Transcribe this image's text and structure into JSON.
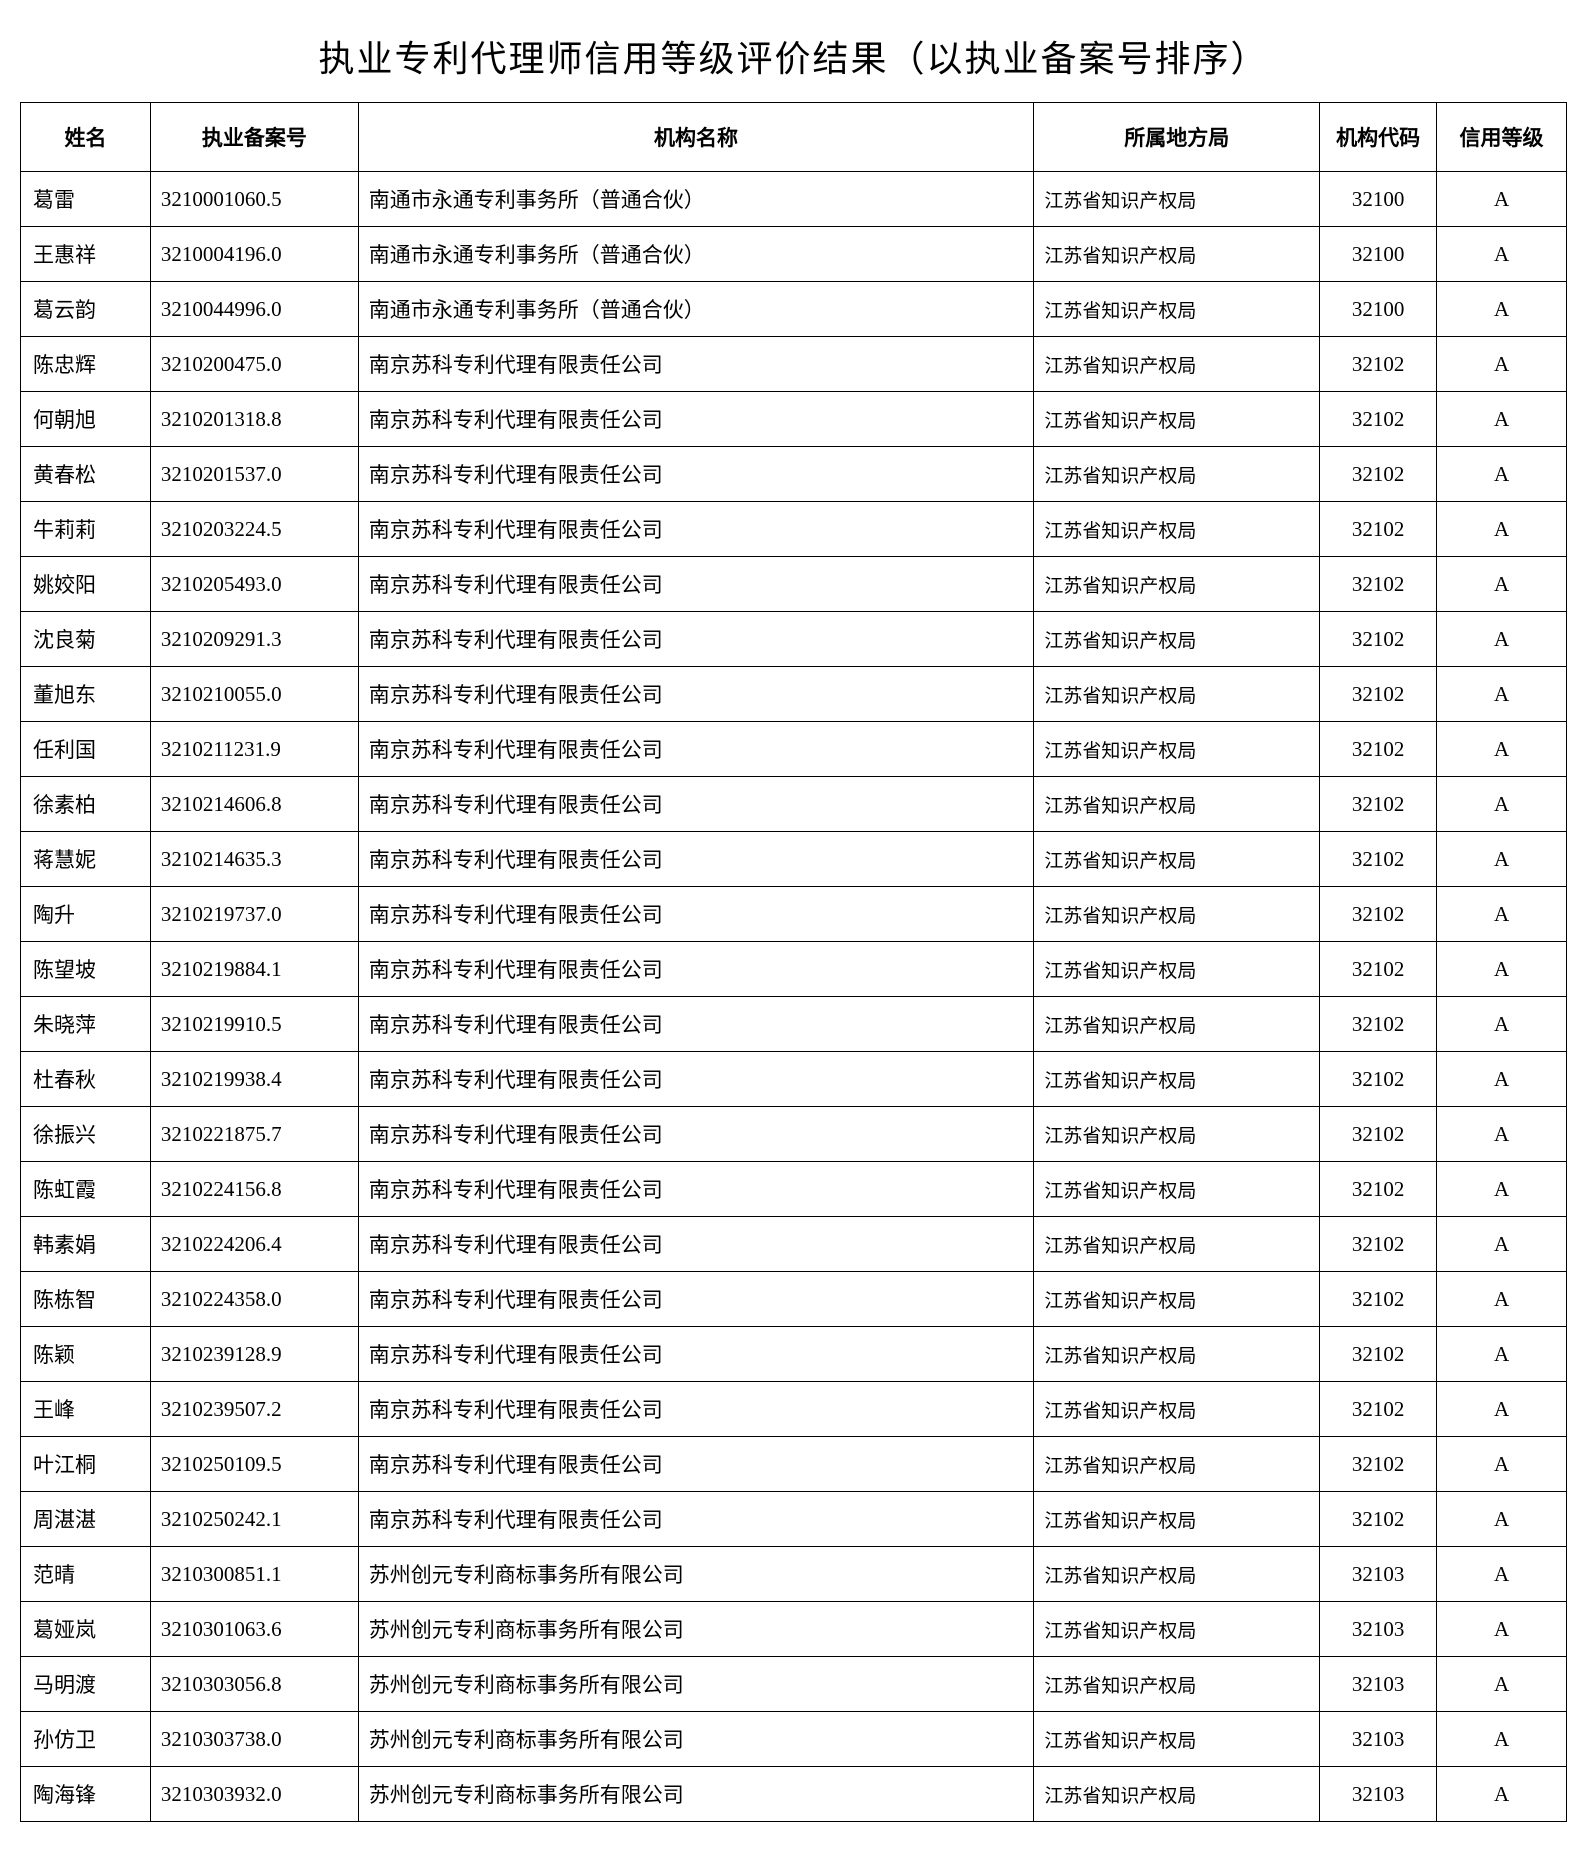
{
  "title": "执业专利代理师信用等级评价结果（以执业备案号排序）",
  "table": {
    "columns": [
      "姓名",
      "执业备案号",
      "机构名称",
      "所属地方局",
      "机构代码",
      "信用等级"
    ],
    "column_keys": [
      "name",
      "regno",
      "org",
      "bureau",
      "code",
      "grade"
    ],
    "rows": [
      [
        "葛雷",
        "3210001060.5",
        "南通市永通专利事务所（普通合伙）",
        "江苏省知识产权局",
        "32100",
        "A"
      ],
      [
        "王惠祥",
        "3210004196.0",
        "南通市永通专利事务所（普通合伙）",
        "江苏省知识产权局",
        "32100",
        "A"
      ],
      [
        "葛云韵",
        "3210044996.0",
        "南通市永通专利事务所（普通合伙）",
        "江苏省知识产权局",
        "32100",
        "A"
      ],
      [
        "陈忠辉",
        "3210200475.0",
        "南京苏科专利代理有限责任公司",
        "江苏省知识产权局",
        "32102",
        "A"
      ],
      [
        "何朝旭",
        "3210201318.8",
        "南京苏科专利代理有限责任公司",
        "江苏省知识产权局",
        "32102",
        "A"
      ],
      [
        "黄春松",
        "3210201537.0",
        "南京苏科专利代理有限责任公司",
        "江苏省知识产权局",
        "32102",
        "A"
      ],
      [
        "牛莉莉",
        "3210203224.5",
        "南京苏科专利代理有限责任公司",
        "江苏省知识产权局",
        "32102",
        "A"
      ],
      [
        "姚姣阳",
        "3210205493.0",
        "南京苏科专利代理有限责任公司",
        "江苏省知识产权局",
        "32102",
        "A"
      ],
      [
        "沈良菊",
        "3210209291.3",
        "南京苏科专利代理有限责任公司",
        "江苏省知识产权局",
        "32102",
        "A"
      ],
      [
        "董旭东",
        "3210210055.0",
        "南京苏科专利代理有限责任公司",
        "江苏省知识产权局",
        "32102",
        "A"
      ],
      [
        "任利国",
        "3210211231.9",
        "南京苏科专利代理有限责任公司",
        "江苏省知识产权局",
        "32102",
        "A"
      ],
      [
        "徐素柏",
        "3210214606.8",
        "南京苏科专利代理有限责任公司",
        "江苏省知识产权局",
        "32102",
        "A"
      ],
      [
        "蒋慧妮",
        "3210214635.3",
        "南京苏科专利代理有限责任公司",
        "江苏省知识产权局",
        "32102",
        "A"
      ],
      [
        "陶升",
        "3210219737.0",
        "南京苏科专利代理有限责任公司",
        "江苏省知识产权局",
        "32102",
        "A"
      ],
      [
        "陈望坡",
        "3210219884.1",
        "南京苏科专利代理有限责任公司",
        "江苏省知识产权局",
        "32102",
        "A"
      ],
      [
        "朱晓萍",
        "3210219910.5",
        "南京苏科专利代理有限责任公司",
        "江苏省知识产权局",
        "32102",
        "A"
      ],
      [
        "杜春秋",
        "3210219938.4",
        "南京苏科专利代理有限责任公司",
        "江苏省知识产权局",
        "32102",
        "A"
      ],
      [
        "徐振兴",
        "3210221875.7",
        "南京苏科专利代理有限责任公司",
        "江苏省知识产权局",
        "32102",
        "A"
      ],
      [
        "陈虹霞",
        "3210224156.8",
        "南京苏科专利代理有限责任公司",
        "江苏省知识产权局",
        "32102",
        "A"
      ],
      [
        "韩素娟",
        "3210224206.4",
        "南京苏科专利代理有限责任公司",
        "江苏省知识产权局",
        "32102",
        "A"
      ],
      [
        "陈栋智",
        "3210224358.0",
        "南京苏科专利代理有限责任公司",
        "江苏省知识产权局",
        "32102",
        "A"
      ],
      [
        "陈颖",
        "3210239128.9",
        "南京苏科专利代理有限责任公司",
        "江苏省知识产权局",
        "32102",
        "A"
      ],
      [
        "王峰",
        "3210239507.2",
        "南京苏科专利代理有限责任公司",
        "江苏省知识产权局",
        "32102",
        "A"
      ],
      [
        "叶江桐",
        "3210250109.5",
        "南京苏科专利代理有限责任公司",
        "江苏省知识产权局",
        "32102",
        "A"
      ],
      [
        "周湛湛",
        "3210250242.1",
        "南京苏科专利代理有限责任公司",
        "江苏省知识产权局",
        "32102",
        "A"
      ],
      [
        "范晴",
        "3210300851.1",
        "苏州创元专利商标事务所有限公司",
        "江苏省知识产权局",
        "32103",
        "A"
      ],
      [
        "葛娅岚",
        "3210301063.6",
        "苏州创元专利商标事务所有限公司",
        "江苏省知识产权局",
        "32103",
        "A"
      ],
      [
        "马明渡",
        "3210303056.8",
        "苏州创元专利商标事务所有限公司",
        "江苏省知识产权局",
        "32103",
        "A"
      ],
      [
        "孙仿卫",
        "3210303738.0",
        "苏州创元专利商标事务所有限公司",
        "江苏省知识产权局",
        "32103",
        "A"
      ],
      [
        "陶海锋",
        "3210303932.0",
        "苏州创元专利商标事务所有限公司",
        "江苏省知识产权局",
        "32103",
        "A"
      ]
    ]
  },
  "style": {
    "background_color": "#ffffff",
    "text_color": "#000000",
    "border_color": "#000000",
    "title_fontsize": 36,
    "cell_fontsize": 21,
    "bureau_fontsize": 19
  }
}
